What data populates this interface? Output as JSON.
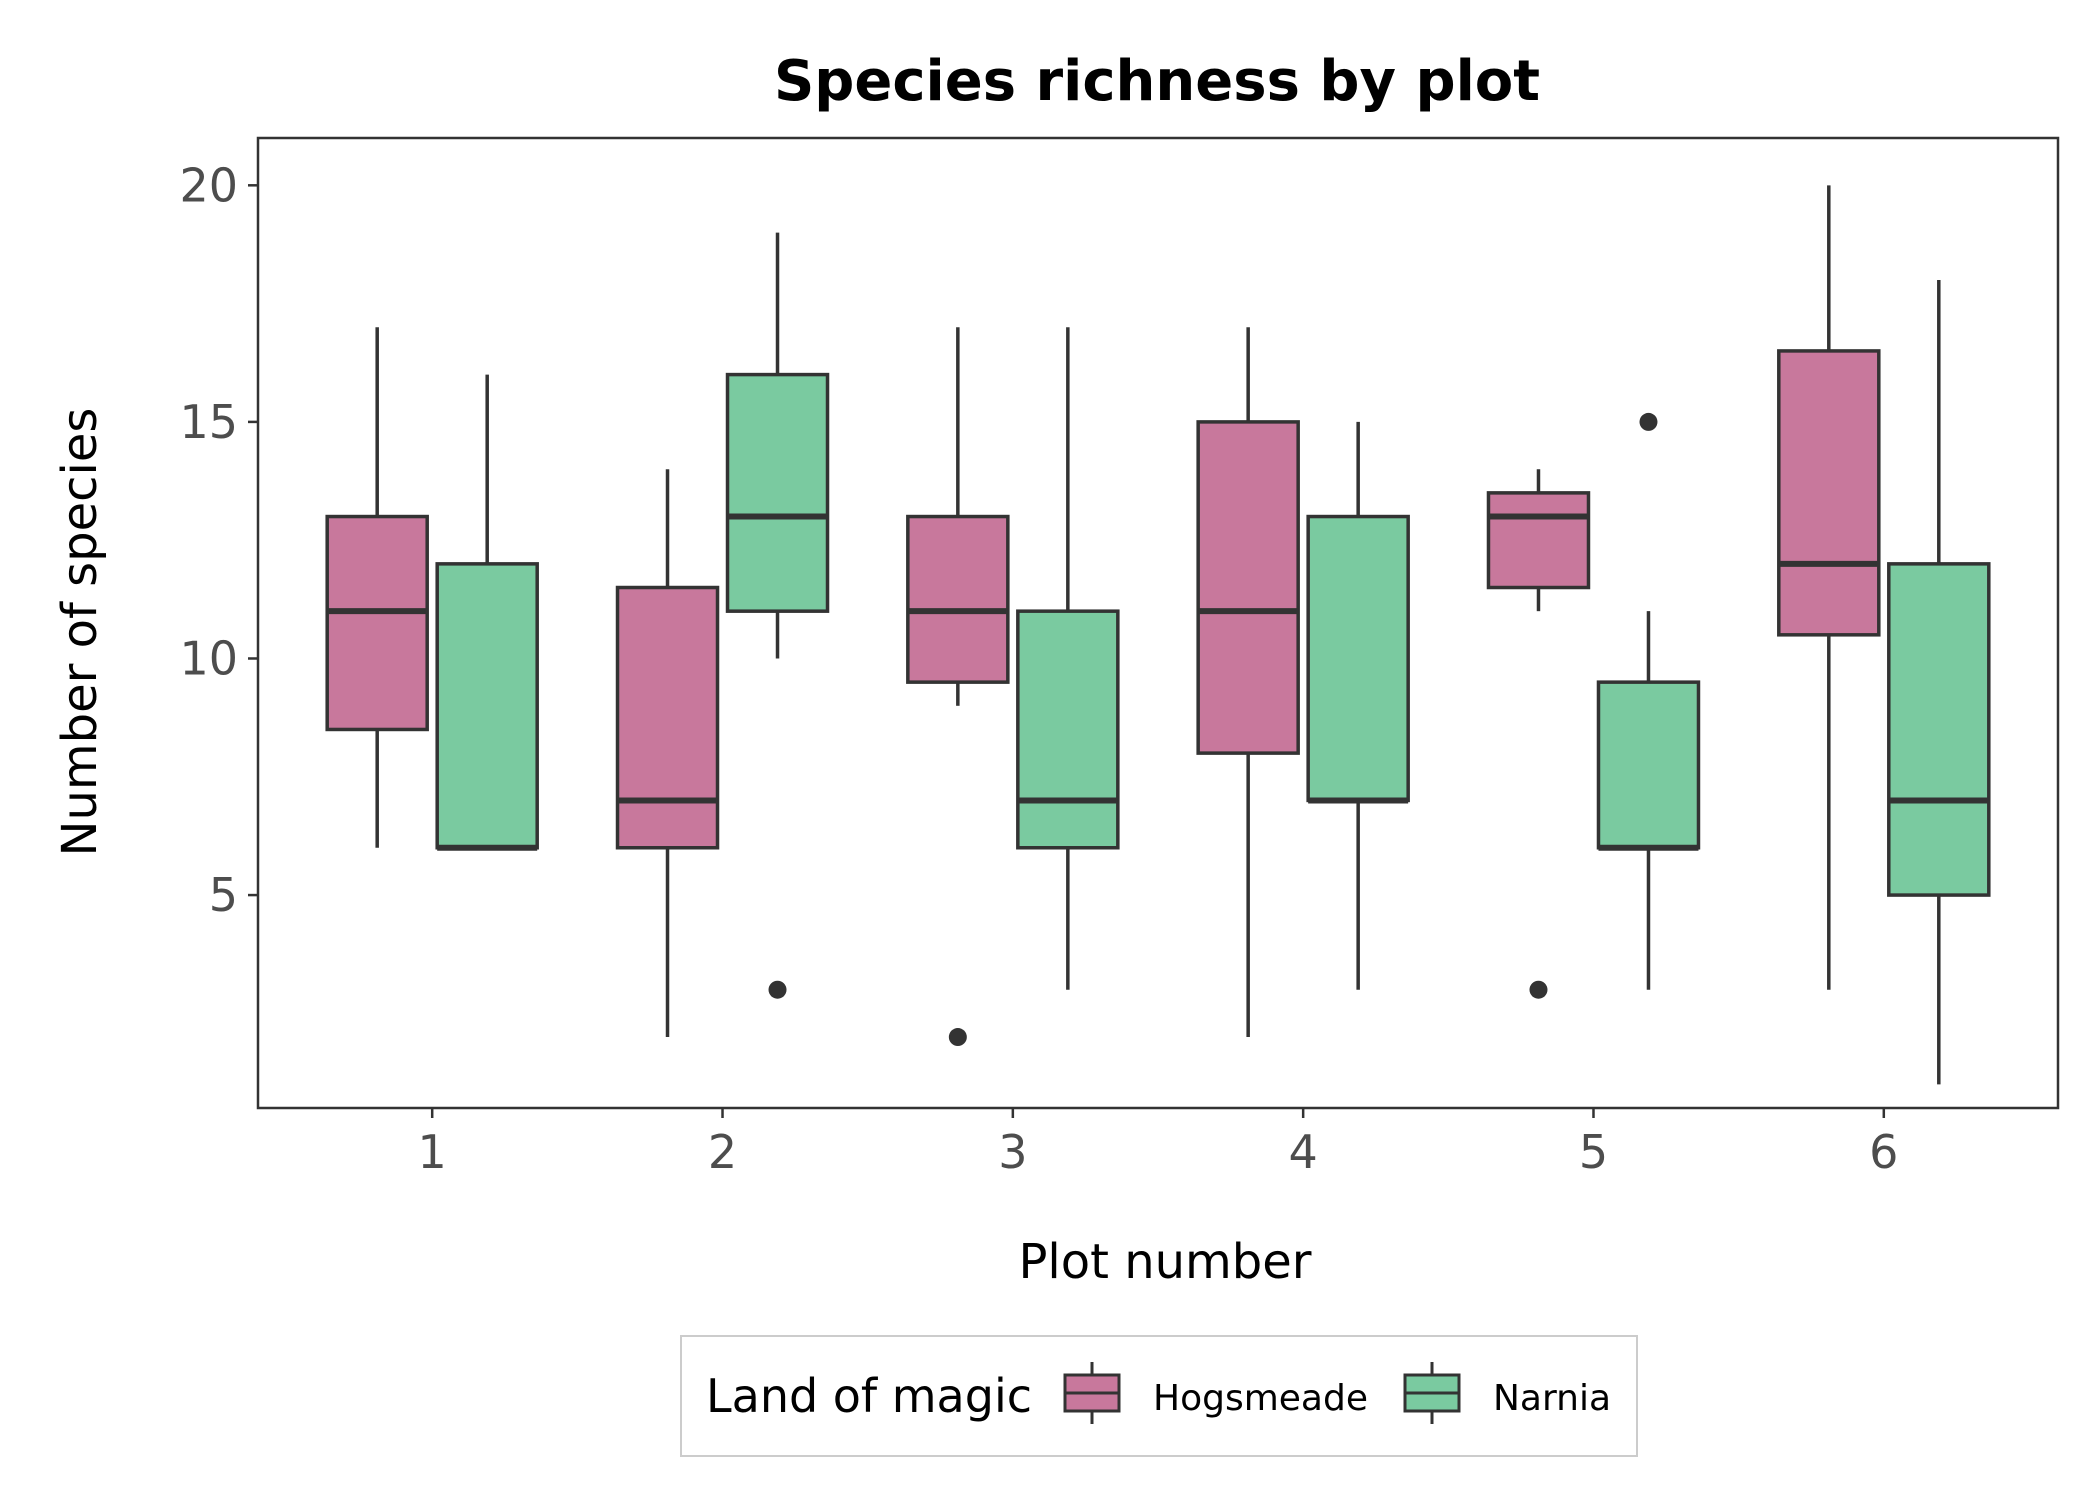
{
  "chart_data": {
    "type": "box",
    "title": "Species richness by plot",
    "xlabel": "Plot number",
    "ylabel": "Number of species",
    "categories": [
      "1",
      "2",
      "3",
      "4",
      "5",
      "6"
    ],
    "yticks": [
      5,
      10,
      15,
      20
    ],
    "ylim": [
      0.5,
      21
    ],
    "grid": false,
    "legend": {
      "title": "Land of magic",
      "position": "bottom",
      "entries": [
        "Hogsmeade",
        "Narnia"
      ]
    },
    "series": [
      {
        "name": "Hogsmeade",
        "color": "#c8789c",
        "boxes": [
          {
            "min": 6,
            "q1": 8.5,
            "median": 11,
            "q3": 13,
            "max": 17,
            "outliers": []
          },
          {
            "min": 2,
            "q1": 6,
            "median": 7,
            "q3": 11.5,
            "max": 14,
            "outliers": []
          },
          {
            "min": 9,
            "q1": 9.5,
            "median": 11,
            "q3": 13,
            "max": 17,
            "outliers": [
              2
            ]
          },
          {
            "min": 2,
            "q1": 8,
            "median": 11,
            "q3": 15,
            "max": 17,
            "outliers": []
          },
          {
            "min": 11,
            "q1": 11.5,
            "median": 13,
            "q3": 13.5,
            "max": 14,
            "outliers": [
              3
            ]
          },
          {
            "min": 3,
            "q1": 10.5,
            "median": 12,
            "q3": 16.5,
            "max": 20,
            "outliers": []
          }
        ]
      },
      {
        "name": "Narnia",
        "color": "#7acaa0",
        "boxes": [
          {
            "min": 6,
            "q1": 6,
            "median": 6,
            "q3": 12,
            "max": 16,
            "outliers": []
          },
          {
            "min": 10,
            "q1": 11,
            "median": 13,
            "q3": 16,
            "max": 19,
            "outliers": [
              3
            ]
          },
          {
            "min": 3,
            "q1": 6,
            "median": 7,
            "q3": 11,
            "max": 17,
            "outliers": []
          },
          {
            "min": 3,
            "q1": 7,
            "median": 7,
            "q3": 13,
            "max": 15,
            "outliers": []
          },
          {
            "min": 3,
            "q1": 6,
            "median": 6,
            "q3": 9.5,
            "max": 11,
            "outliers": [
              15
            ]
          },
          {
            "min": 1,
            "q1": 5,
            "median": 7,
            "q3": 12,
            "max": 18,
            "outliers": []
          }
        ]
      }
    ]
  }
}
